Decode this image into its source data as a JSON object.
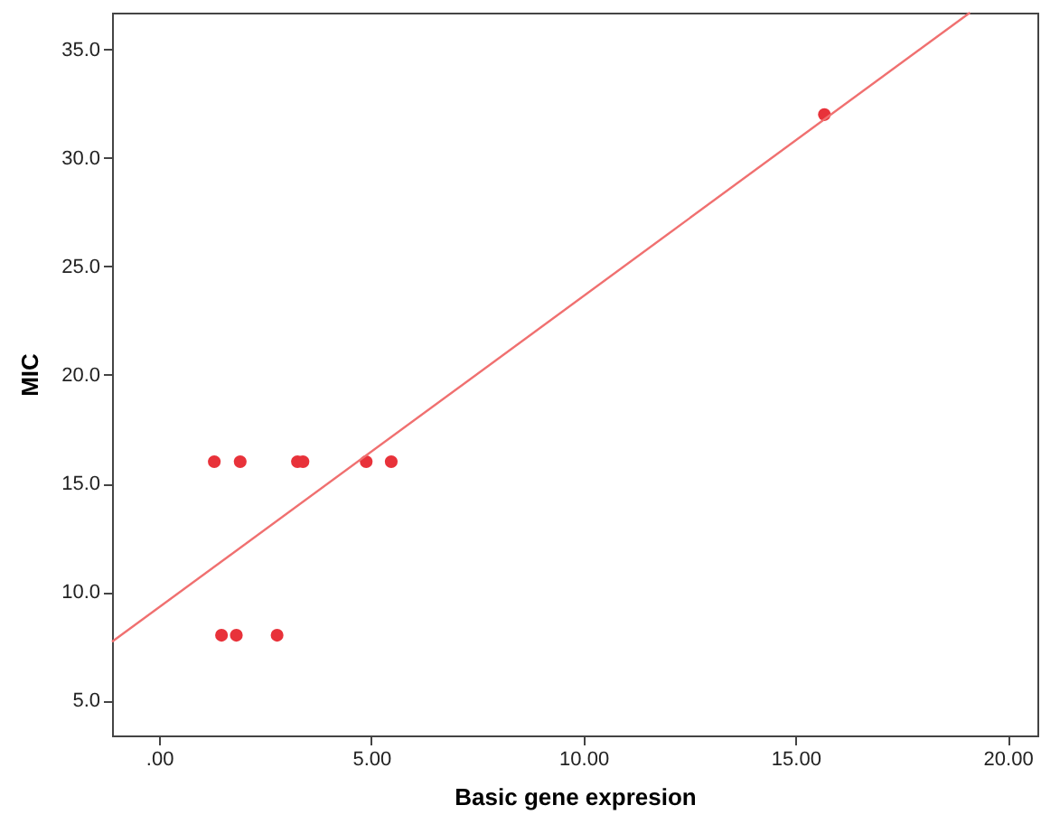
{
  "chart_data": {
    "type": "scatter",
    "xlabel": "Basic gene expresion",
    "ylabel": "MIC",
    "xlim": [
      -1.11,
      20.7
    ],
    "ylim": [
      3.38,
      36.7
    ],
    "xticks": [
      {
        "value": 0,
        "label": ".00"
      },
      {
        "value": 5,
        "label": "5.00"
      },
      {
        "value": 10,
        "label": "10.00"
      },
      {
        "value": 15,
        "label": "15.00"
      },
      {
        "value": 20,
        "label": "20.00"
      }
    ],
    "yticks": [
      {
        "value": 5,
        "label": "5.0"
      },
      {
        "value": 10,
        "label": "10.0"
      },
      {
        "value": 15,
        "label": "15.0"
      },
      {
        "value": 20,
        "label": "20.0"
      },
      {
        "value": 25,
        "label": "25.0"
      },
      {
        "value": 30,
        "label": "30.0"
      },
      {
        "value": 35,
        "label": "35.0"
      }
    ],
    "grid": false,
    "series": [
      {
        "marker": "circle",
        "color": "#e8323a",
        "x": [
          1.3,
          1.91,
          3.26,
          3.39,
          4.88,
          5.47,
          15.68,
          1.47,
          1.82,
          2.78
        ],
        "values": [
          16,
          16,
          16,
          16,
          16,
          16,
          32,
          8,
          8,
          8
        ]
      },
      {
        "type": "line",
        "color": "#f07070",
        "x": [
          -1.11,
          19.11
        ],
        "values": [
          7.7,
          36.7
        ]
      }
    ]
  }
}
